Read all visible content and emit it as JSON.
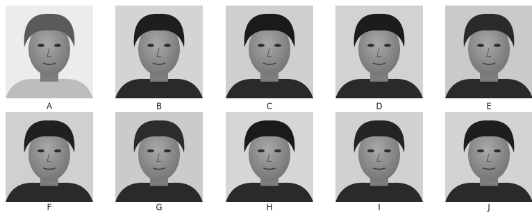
{
  "faces": [
    {
      "label": "A"
    },
    {
      "label": "B"
    },
    {
      "label": "C"
    },
    {
      "label": "D"
    },
    {
      "label": "E"
    },
    {
      "label": "F"
    },
    {
      "label": "G"
    },
    {
      "label": "H"
    },
    {
      "label": "I"
    },
    {
      "label": "J"
    }
  ]
}
